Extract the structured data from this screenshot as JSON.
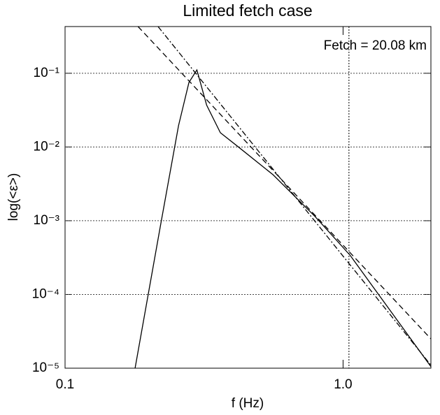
{
  "chart_data": {
    "type": "line",
    "title": "Limited fetch case",
    "x_label": "f (Hz)",
    "y_label": "log(<ε>)",
    "annotation": "Fetch =  20.08 km",
    "log_x": true,
    "log_y": true,
    "grid": true,
    "xlim": [
      0.1,
      2.07
    ],
    "ylim": [
      1e-05,
      0.43
    ],
    "xticks": [
      0.1,
      {
        "value": 1,
        "label": "1.0"
      }
    ],
    "yticks": [
      {
        "value": 1e-05,
        "label": "10⁻⁵"
      },
      {
        "value": 0.0001,
        "label": "10⁻⁴"
      },
      {
        "value": 0.001,
        "label": "10⁻³"
      },
      {
        "value": 0.01,
        "label": "10⁻²"
      },
      {
        "value": 0.1,
        "label": "10⁻¹"
      }
    ],
    "vline": 1.05,
    "series": [
      {
        "color": "#000000",
        "dash": "solid",
        "x": [
          0.1786,
          0.221,
          0.256,
          0.279,
          0.298,
          0.323,
          0.362,
          0.419,
          0.56,
          0.793,
          1.06,
          2.07
        ],
        "y": [
          1e-05,
          0.00091,
          0.0195,
          0.075,
          0.111,
          0.037,
          0.0156,
          0.0101,
          0.0042,
          0.00114,
          0.00034,
          1.05e-05
        ]
      },
      {
        "color": "#000000",
        "dash": "dashed",
        "x": [
          0.183,
          2.07
        ],
        "y": [
          0.43,
          2.5e-05
        ]
      },
      {
        "color": "#000000",
        "dash": "dashdot",
        "x": [
          0.216,
          2.07
        ],
        "y": [
          0.43,
          1.1e-05
        ]
      }
    ]
  }
}
